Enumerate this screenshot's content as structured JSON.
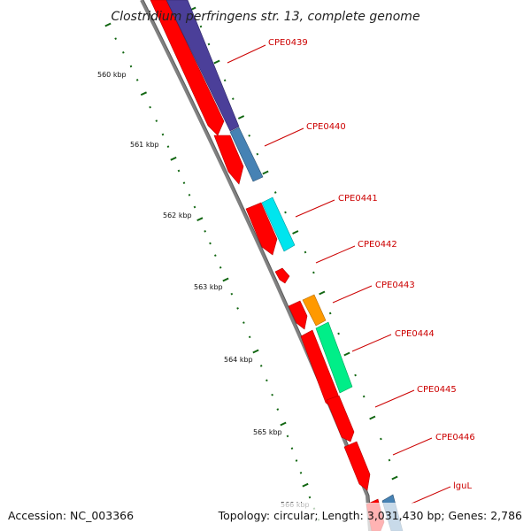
{
  "title": "Clostridium perfringens str. 13, complete genome",
  "footer": {
    "accession": "Accession: NC_003366",
    "topology": "Topology: circular; Length: 3,031,430 bp; Genes: 2,786"
  },
  "ruler": {
    "ticks": [
      "560 kbp",
      "561 kbp",
      "562 kbp",
      "563 kbp",
      "564 kbp",
      "565 kbp",
      "566 kbp"
    ]
  },
  "genes": [
    {
      "name": "CPE0439"
    },
    {
      "name": "CPE0440"
    },
    {
      "name": "CPE0441"
    },
    {
      "name": "CPE0442"
    },
    {
      "name": "CPE0443"
    },
    {
      "name": "CPE0444"
    },
    {
      "name": "CPE0445"
    },
    {
      "name": "CPE0446"
    },
    {
      "name": "lguL"
    }
  ],
  "colors": {
    "cds": "#ff0000",
    "backbone": "#808080",
    "ruler_dots": "#116611",
    "label_text": "#cc0000",
    "cog_purple": "#4b3f99",
    "cog_steelblue": "#4682b4",
    "cog_cyan": "#00e5ee",
    "cog_orange": "#ff9900",
    "cog_springgreen": "#00ee88"
  }
}
